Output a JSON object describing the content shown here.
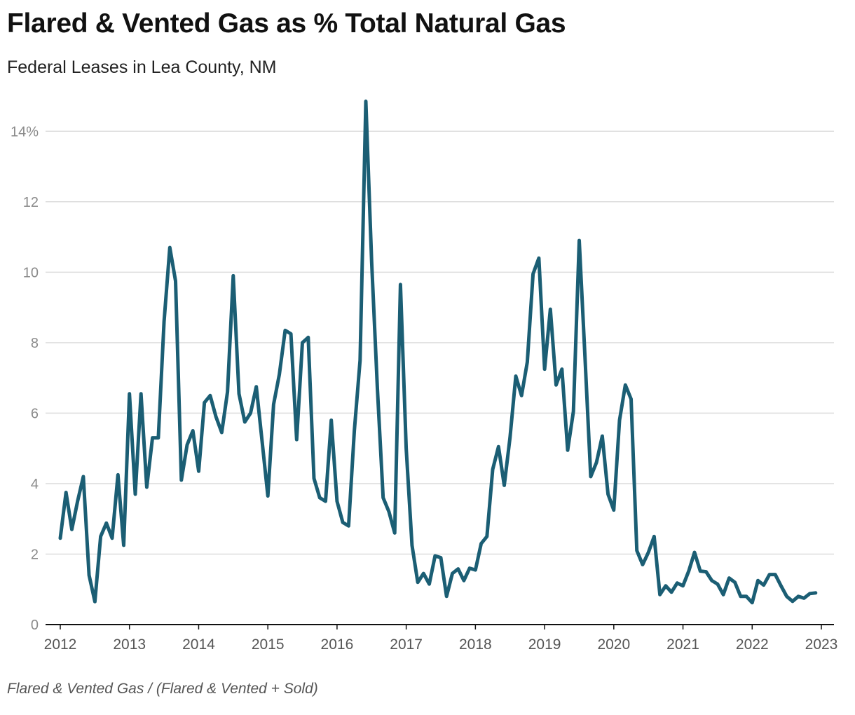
{
  "chart_data": {
    "type": "line",
    "title": "Flared & Vented Gas as % Total Natural Gas",
    "subtitle": "Federal Leases in Lea County, NM",
    "note": "Flared & Vented Gas / (Flared & Vented + Sold)",
    "xlabel": "",
    "ylabel": "",
    "ylim": [
      0,
      15
    ],
    "xlim": [
      2012,
      2023
    ],
    "y_ticks": [
      0,
      2,
      4,
      6,
      8,
      10,
      12,
      14
    ],
    "y_tick_labels": [
      "0",
      "2",
      "4",
      "6",
      "8",
      "10",
      "12",
      "14%"
    ],
    "x_ticks": [
      2012,
      2013,
      2014,
      2015,
      2016,
      2017,
      2018,
      2019,
      2020,
      2021,
      2022,
      2023
    ],
    "x_tick_labels": [
      "2012",
      "2013",
      "2014",
      "2015",
      "2016",
      "2017",
      "2018",
      "2019",
      "2020",
      "2021",
      "2022",
      "2023"
    ],
    "grid": true,
    "series": [
      {
        "name": "Flared & Vented Gas %",
        "color": "#1b5e74",
        "x": [
          2012.0,
          2012.0833,
          2012.1667,
          2012.25,
          2012.3333,
          2012.4167,
          2012.5,
          2012.5833,
          2012.6667,
          2012.75,
          2012.8333,
          2012.9167,
          2013.0,
          2013.0833,
          2013.1667,
          2013.25,
          2013.3333,
          2013.4167,
          2013.5,
          2013.5833,
          2013.6667,
          2013.75,
          2013.8333,
          2013.9167,
          2014.0,
          2014.0833,
          2014.1667,
          2014.25,
          2014.3333,
          2014.4167,
          2014.5,
          2014.5833,
          2014.6667,
          2014.75,
          2014.8333,
          2014.9167,
          2015.0,
          2015.0833,
          2015.1667,
          2015.25,
          2015.3333,
          2015.4167,
          2015.5,
          2015.5833,
          2015.6667,
          2015.75,
          2015.8333,
          2015.9167,
          2016.0,
          2016.0833,
          2016.1667,
          2016.25,
          2016.3333,
          2016.4167,
          2016.5,
          2016.5833,
          2016.6667,
          2016.75,
          2016.8333,
          2016.9167,
          2017.0,
          2017.0833,
          2017.1667,
          2017.25,
          2017.3333,
          2017.4167,
          2017.5,
          2017.5833,
          2017.6667,
          2017.75,
          2017.8333,
          2017.9167,
          2018.0,
          2018.0833,
          2018.1667,
          2018.25,
          2018.3333,
          2018.4167,
          2018.5,
          2018.5833,
          2018.6667,
          2018.75,
          2018.8333,
          2018.9167,
          2019.0,
          2019.0833,
          2019.1667,
          2019.25,
          2019.3333,
          2019.4167,
          2019.5,
          2019.5833,
          2019.6667,
          2019.75,
          2019.8333,
          2019.9167,
          2020.0,
          2020.0833,
          2020.1667,
          2020.25,
          2020.3333,
          2020.4167,
          2020.5,
          2020.5833,
          2020.6667,
          2020.75,
          2020.8333,
          2020.9167,
          2021.0,
          2021.0833,
          2021.1667,
          2021.25,
          2021.3333,
          2021.4167,
          2021.5,
          2021.5833,
          2021.6667,
          2021.75,
          2021.8333,
          2021.9167,
          2022.0,
          2022.0833,
          2022.1667,
          2022.25,
          2022.3333,
          2022.4167,
          2022.5,
          2022.5833,
          2022.6667,
          2022.75,
          2022.8333,
          2022.9167
        ],
        "values": [
          2.45,
          3.75,
          2.7,
          3.5,
          4.2,
          1.4,
          0.65,
          2.5,
          2.88,
          2.45,
          4.25,
          2.25,
          6.55,
          3.7,
          6.55,
          3.9,
          5.3,
          5.3,
          8.6,
          10.7,
          9.75,
          4.1,
          5.1,
          5.5,
          4.35,
          6.3,
          6.5,
          5.9,
          5.45,
          6.6,
          9.9,
          6.55,
          5.75,
          6.0,
          6.75,
          5.2,
          3.65,
          6.25,
          7.1,
          8.35,
          8.25,
          5.25,
          8.0,
          8.15,
          4.15,
          3.6,
          3.5,
          5.8,
          3.5,
          2.9,
          2.8,
          5.5,
          7.5,
          14.85,
          10.3,
          6.7,
          3.6,
          3.2,
          2.6,
          9.65,
          5.0,
          2.25,
          1.2,
          1.45,
          1.15,
          1.95,
          1.9,
          0.8,
          1.45,
          1.58,
          1.25,
          1.6,
          1.55,
          2.3,
          2.5,
          4.4,
          5.05,
          3.95,
          5.3,
          7.05,
          6.5,
          7.45,
          9.95,
          10.4,
          7.25,
          8.95,
          6.8,
          7.25,
          4.95,
          6.05,
          10.9,
          7.6,
          4.2,
          4.6,
          5.35,
          3.7,
          3.25,
          5.8,
          6.8,
          6.4,
          2.1,
          1.7,
          2.05,
          2.5,
          0.85,
          1.1,
          0.92,
          1.18,
          1.1,
          1.52,
          2.05,
          1.52,
          1.5,
          1.25,
          1.15,
          0.85,
          1.32,
          1.2,
          0.8,
          0.8,
          0.62,
          1.25,
          1.12,
          1.42,
          1.42,
          1.1,
          0.8,
          0.66,
          0.8,
          0.75,
          0.88,
          0.9
        ]
      }
    ]
  }
}
